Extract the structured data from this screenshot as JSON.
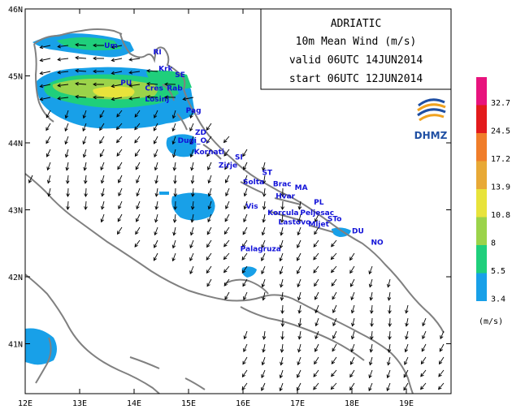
{
  "title": {
    "region": "ADRIATIC",
    "field": "10m Mean Wind (m/s)",
    "valid": "valid 06UTC 14JUN2014",
    "start": "start 06UTC 12JUN2014"
  },
  "logo": {
    "text": "DHMZ"
  },
  "axes": {
    "x_ticks": [
      "12E",
      "13E",
      "14E",
      "15E",
      "16E",
      "17E",
      "18E",
      "19E"
    ],
    "y_ticks": [
      "46N",
      "45N",
      "44N",
      "43N",
      "42N",
      "41N"
    ]
  },
  "colorbar": {
    "unit": "(m/s)",
    "labels": [
      "32.7",
      "24.5",
      "17.2",
      "13.9",
      "10.8",
      "8",
      "5.5",
      "3.4"
    ],
    "colors": [
      "#e8137d",
      "#e31a1c",
      "#f07d2a",
      "#e8a936",
      "#e8e33b",
      "#9bd34a",
      "#1fcf7c",
      "#18a0e8"
    ]
  },
  "places": [
    {
      "label": "Um",
      "lon": 13.45,
      "lat": 45.42
    },
    {
      "label": "RI",
      "lon": 14.35,
      "lat": 45.32
    },
    {
      "label": "Krk",
      "lon": 14.45,
      "lat": 45.07
    },
    {
      "label": "SE",
      "lon": 14.75,
      "lat": 44.98
    },
    {
      "label": "PU",
      "lon": 13.75,
      "lat": 44.86
    },
    {
      "label": "Cres",
      "lon": 14.2,
      "lat": 44.78
    },
    {
      "label": "Rab",
      "lon": 14.6,
      "lat": 44.78
    },
    {
      "label": "Losinj",
      "lon": 14.2,
      "lat": 44.62
    },
    {
      "label": "Pag",
      "lon": 14.95,
      "lat": 44.45
    },
    {
      "label": "ZD",
      "lon": 15.12,
      "lat": 44.12
    },
    {
      "label": "Dugi_O.",
      "lon": 14.8,
      "lat": 44.0
    },
    {
      "label": "Kornati",
      "lon": 15.1,
      "lat": 43.83
    },
    {
      "label": "SI",
      "lon": 15.85,
      "lat": 43.75
    },
    {
      "label": "Zirje",
      "lon": 15.55,
      "lat": 43.63
    },
    {
      "label": "ST",
      "lon": 16.35,
      "lat": 43.52
    },
    {
      "label": "Solta",
      "lon": 16.0,
      "lat": 43.38
    },
    {
      "label": "Brac",
      "lon": 16.55,
      "lat": 43.35
    },
    {
      "label": "MA",
      "lon": 16.95,
      "lat": 43.3
    },
    {
      "label": "Hvar",
      "lon": 16.6,
      "lat": 43.17
    },
    {
      "label": "PL",
      "lon": 17.3,
      "lat": 43.08
    },
    {
      "label": "Vis",
      "lon": 16.05,
      "lat": 43.02
    },
    {
      "label": "Korcula",
      "lon": 16.45,
      "lat": 42.92
    },
    {
      "label": "Peljesac",
      "lon": 17.05,
      "lat": 42.92
    },
    {
      "label": "STo",
      "lon": 17.55,
      "lat": 42.83
    },
    {
      "label": "Lastovo",
      "lon": 16.65,
      "lat": 42.78
    },
    {
      "label": "Mljet",
      "lon": 17.2,
      "lat": 42.75
    },
    {
      "label": "DU",
      "lon": 18.0,
      "lat": 42.65
    },
    {
      "label": "NO",
      "lon": 18.35,
      "lat": 42.48
    },
    {
      "label": "Palagruza",
      "lon": 15.95,
      "lat": 42.38
    }
  ]
}
